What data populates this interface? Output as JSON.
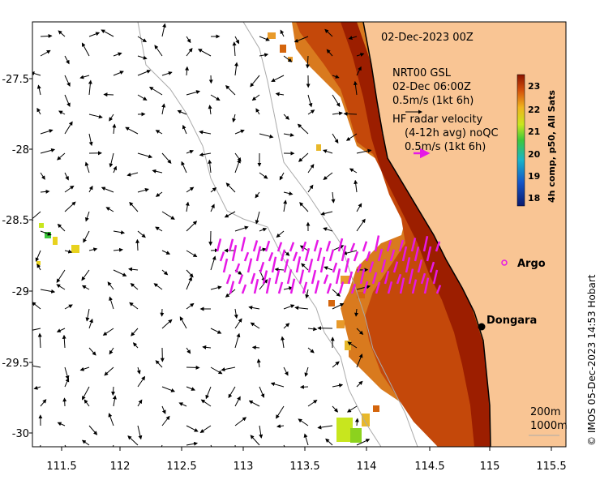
{
  "map": {
    "date_label": "02-Dec-2023 00Z",
    "gsl_label": "NRT00 GSL",
    "gsl_time": "02-Dec 06:00Z",
    "gsl_scale": "0.5m/s (1kt 6h)",
    "hf_title": "HF radar velocity",
    "hf_sub": "(4-12h avg) noQC",
    "hf_scale": "0.5m/s (1kt 6h)",
    "argo_label": "Argo",
    "town_label": "Dongara",
    "depth_200": "200m",
    "depth_1000": "1000m",
    "credit": "© IMOS 05-Dec-2023 14:53 Hobart",
    "colorbar_title": "4h comp, p50, All Sats",
    "colorbar_ticks": [
      "23",
      "22",
      "21",
      "20",
      "19",
      "18"
    ],
    "x_ticks": [
      "111.5",
      "112",
      "112.5",
      "113",
      "113.5",
      "114",
      "114.5",
      "115",
      "115.5"
    ],
    "y_ticks": [
      "-27.5",
      "-28",
      "-28.5",
      "-29",
      "-29.5",
      "-30"
    ],
    "colors": {
      "land": "#f9c594",
      "hf": "#e619e6",
      "sst_warm": "#b52a00",
      "sst_mid": "#d4650d",
      "sst_cool": "#e89a2a"
    }
  }
}
